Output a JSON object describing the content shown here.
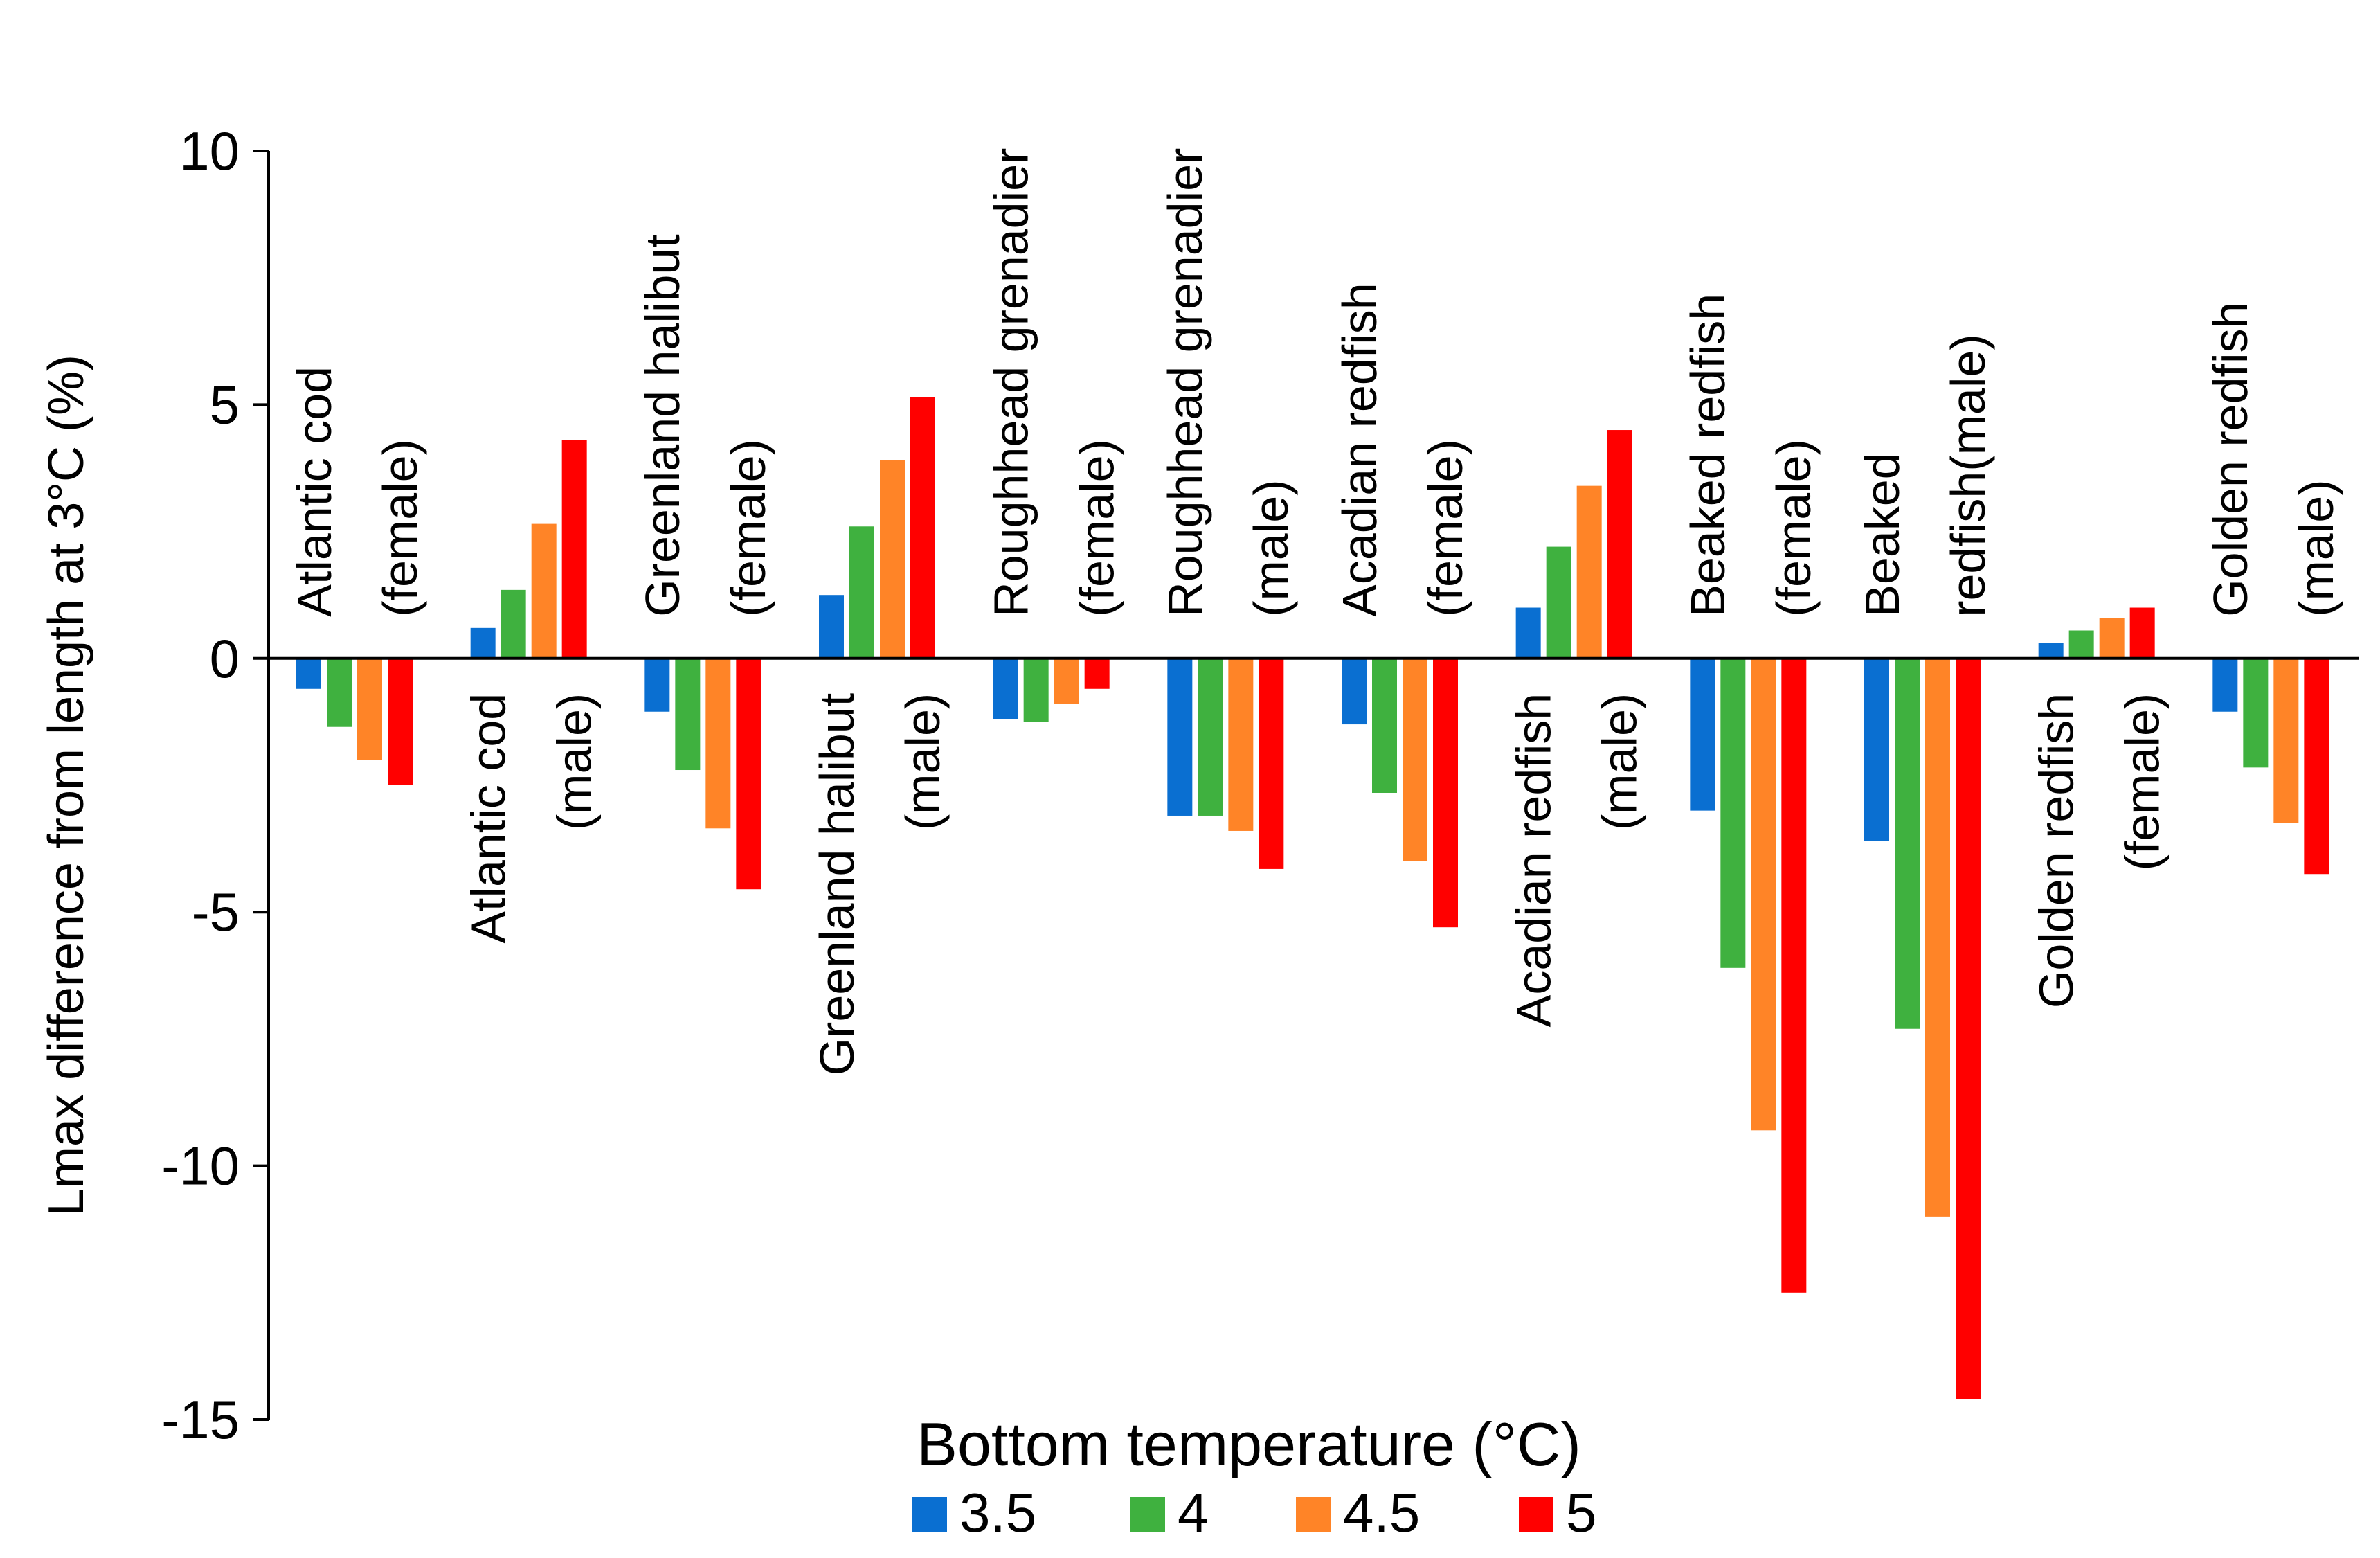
{
  "chart_data": {
    "type": "bar",
    "title": "",
    "ylabel": "Lmax difference from length at 3°C (%)",
    "xlabel": "",
    "ylim": [
      -15,
      10
    ],
    "yticks": [
      10,
      5,
      0,
      -5,
      -10,
      -15
    ],
    "ytick_labels": [
      "10",
      "5",
      "0",
      "-5",
      "-10",
      "-15"
    ],
    "legend_title": "Bottom temperature (°C)",
    "legend_position": "bottom-center",
    "categories": [
      "Atlantic cod (female)",
      "Atlantic cod (male)",
      "Greenland halibut (female)",
      "Greenland halibut (male)",
      "Roughhead grenadier (female)",
      "Roughhead grenadier (male)",
      "Acadian redfish (female)",
      "Acadian redfish (male)",
      "Beaked redfish (female)",
      "Beaked redfish(male)",
      "Golden redfish (female)",
      "Golden redfish (male)"
    ],
    "category_label_lines": [
      [
        "Atlantic cod",
        "(female)"
      ],
      [
        "Atlantic cod",
        "(male)"
      ],
      [
        "Greenland halibut",
        "(female)"
      ],
      [
        "Greenland halibut",
        "(male)"
      ],
      [
        "Roughhead grenadier",
        "(female)"
      ],
      [
        "Roughhead grenadier",
        "(male)"
      ],
      [
        "Acadian redfish",
        "(female)"
      ],
      [
        "Acadian redfish",
        "(male)"
      ],
      [
        "Beaked redfish",
        "(female)"
      ],
      [
        "Beaked",
        "redfish(male)"
      ],
      [
        "Golden redfish",
        "(female)"
      ],
      [
        "Golden redfish",
        "(male)"
      ]
    ],
    "series": [
      {
        "name": "3.5",
        "color": "#0a6fd1",
        "values": [
          -0.6,
          0.6,
          -1.05,
          1.25,
          -1.2,
          -3.1,
          -1.3,
          1.0,
          -3.0,
          -3.6,
          0.3,
          -1.05
        ]
      },
      {
        "name": "4",
        "color": "#3fb13f",
        "values": [
          -1.35,
          1.35,
          -2.2,
          2.6,
          -1.25,
          -3.1,
          -2.65,
          2.2,
          -6.1,
          -7.3,
          0.55,
          -2.15
        ]
      },
      {
        "name": "4.5",
        "color": "#ff8427",
        "values": [
          -2.0,
          2.65,
          -3.35,
          3.9,
          -0.9,
          -3.4,
          -4.0,
          3.4,
          -9.3,
          -11.0,
          0.8,
          -3.25
        ]
      },
      {
        "name": "5",
        "color": "#ff0000",
        "values": [
          -2.5,
          4.3,
          -4.55,
          5.15,
          -0.6,
          -4.15,
          -5.3,
          4.5,
          -12.5,
          -14.6,
          1.0,
          -4.25
        ]
      }
    ]
  }
}
